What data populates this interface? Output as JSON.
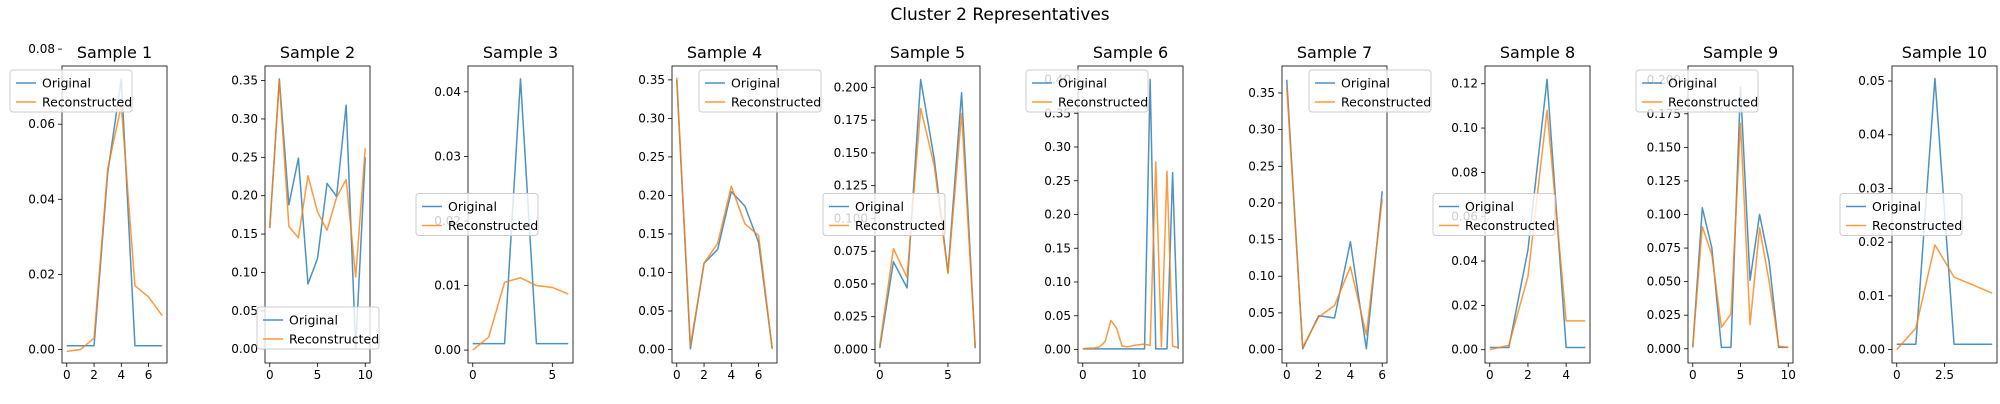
{
  "figure": {
    "suptitle": "Cluster 2 Representatives",
    "legend_labels": [
      "Original",
      "Reconstructed"
    ],
    "colors": {
      "original": "#1f77b4",
      "reconstructed": "#ff7f0e"
    }
  },
  "chart_data": [
    {
      "type": "line",
      "title": "Sample 1",
      "xlim": [
        -0.35,
        7.35
      ],
      "ylim": [
        -0.0036,
        0.0755
      ],
      "xticks": [
        0,
        2,
        4,
        6
      ],
      "yticks": [
        0.0,
        0.02,
        0.04,
        0.06,
        0.08
      ],
      "ytick_decimals": 2,
      "legend_position": "upper left",
      "x": [
        0,
        1,
        2,
        3,
        4,
        5,
        6,
        7
      ],
      "series": [
        {
          "name": "Original",
          "values": [
            0.001,
            0.001,
            0.001,
            0.047,
            0.072,
            0.001,
            0.001,
            0.001
          ]
        },
        {
          "name": "Reconstructed",
          "values": [
            -0.0005,
            0.0,
            0.003,
            0.048,
            0.065,
            0.017,
            0.014,
            0.009
          ]
        }
      ]
    },
    {
      "type": "line",
      "title": "Sample 2",
      "xlim": [
        -0.5,
        10.5
      ],
      "ylim": [
        -0.018,
        0.369
      ],
      "xticks": [
        0,
        5,
        10
      ],
      "yticks": [
        0.0,
        0.05,
        0.1,
        0.15,
        0.2,
        0.25,
        0.3,
        0.35
      ],
      "ytick_decimals": 2,
      "legend_position": "lower center",
      "x": [
        0,
        1,
        2,
        3,
        4,
        5,
        6,
        7,
        8,
        9,
        10
      ],
      "series": [
        {
          "name": "Original",
          "values": [
            0.158,
            0.352,
            0.188,
            0.249,
            0.085,
            0.118,
            0.216,
            0.199,
            0.318,
            0.002,
            0.25
          ]
        },
        {
          "name": "Reconstructed",
          "values": [
            0.158,
            0.35,
            0.16,
            0.145,
            0.226,
            0.179,
            0.155,
            0.198,
            0.221,
            0.094,
            0.262
          ]
        }
      ]
    },
    {
      "type": "line",
      "title": "Sample 3",
      "xlim": [
        -0.3,
        6.3
      ],
      "ylim": [
        -0.002,
        0.044
      ],
      "xticks": [
        0,
        5
      ],
      "yticks": [
        0.0,
        0.01,
        0.02,
        0.03,
        0.04
      ],
      "ytick_decimals": 2,
      "legend_position": "center left",
      "x": [
        0,
        1,
        2,
        3,
        4,
        5,
        6
      ],
      "series": [
        {
          "name": "Original",
          "values": [
            0.001,
            0.001,
            0.001,
            0.042,
            0.001,
            0.001,
            0.001
          ]
        },
        {
          "name": "Reconstructed",
          "values": [
            0.0,
            0.002,
            0.0105,
            0.0112,
            0.01,
            0.0097,
            0.0087
          ]
        }
      ]
    },
    {
      "type": "line",
      "title": "Sample 4",
      "xlim": [
        -0.35,
        7.35
      ],
      "ylim": [
        -0.0175,
        0.368
      ],
      "xticks": [
        0,
        2,
        4,
        6
      ],
      "yticks": [
        0.0,
        0.05,
        0.1,
        0.15,
        0.2,
        0.25,
        0.3,
        0.35
      ],
      "ytick_decimals": 2,
      "legend_position": "upper right",
      "x": [
        0,
        1,
        2,
        3,
        4,
        5,
        6,
        7
      ],
      "series": [
        {
          "name": "Original",
          "values": [
            0.35,
            0.001,
            0.112,
            0.13,
            0.205,
            0.186,
            0.139,
            0.001
          ]
        },
        {
          "name": "Reconstructed",
          "values": [
            0.353,
            0.005,
            0.112,
            0.138,
            0.212,
            0.163,
            0.148,
            0.001
          ]
        }
      ]
    },
    {
      "type": "line",
      "title": "Sample 5",
      "xlim": [
        -0.35,
        7.35
      ],
      "ylim": [
        -0.0103,
        0.2163
      ],
      "xticks": [
        0,
        5
      ],
      "yticks": [
        0.0,
        0.025,
        0.05,
        0.075,
        0.1,
        0.125,
        0.15,
        0.175,
        0.2
      ],
      "ytick_decimals": 3,
      "legend_position": "center left",
      "x": [
        0,
        1,
        2,
        3,
        4,
        5,
        6,
        7
      ],
      "series": [
        {
          "name": "Original",
          "values": [
            0.001,
            0.067,
            0.047,
            0.206,
            0.145,
            0.059,
            0.196,
            0.001
          ]
        },
        {
          "name": "Reconstructed",
          "values": [
            0.003,
            0.077,
            0.055,
            0.184,
            0.14,
            0.058,
            0.18,
            0.002
          ]
        }
      ]
    },
    {
      "type": "line",
      "title": "Sample 6",
      "xlim": [
        -0.85,
        17.85
      ],
      "ylim": [
        -0.02,
        0.42
      ],
      "xticks": [
        0,
        10
      ],
      "yticks": [
        0.0,
        0.05,
        0.1,
        0.15,
        0.2,
        0.25,
        0.3,
        0.35,
        0.4
      ],
      "ytick_decimals": 2,
      "legend_position": "upper left",
      "x": [
        0,
        1,
        2,
        3,
        4,
        5,
        6,
        7,
        8,
        9,
        10,
        11,
        12,
        13,
        14,
        15,
        16,
        17
      ],
      "series": [
        {
          "name": "Original",
          "values": [
            0.001,
            0.001,
            0.001,
            0.001,
            0.001,
            0.001,
            0.001,
            0.001,
            0.001,
            0.001,
            0.001,
            0.001,
            0.4,
            0.001,
            0.001,
            0.001,
            0.262,
            0.001
          ]
        },
        {
          "name": "Reconstructed",
          "values": [
            0.001,
            0.002,
            0.002,
            0.004,
            0.012,
            0.043,
            0.032,
            0.005,
            0.004,
            0.006,
            0.007,
            0.008,
            0.006,
            0.278,
            0.004,
            0.264,
            0.005,
            0.003
          ]
        }
      ]
    },
    {
      "type": "line",
      "title": "Sample 7",
      "xlim": [
        -0.3,
        6.3
      ],
      "ylim": [
        -0.0184,
        0.3868
      ],
      "xticks": [
        0,
        2,
        4,
        6
      ],
      "yticks": [
        0.0,
        0.05,
        0.1,
        0.15,
        0.2,
        0.25,
        0.3,
        0.35
      ],
      "ytick_decimals": 2,
      "legend_position": "upper right",
      "x": [
        0,
        1,
        2,
        3,
        4,
        5,
        6
      ],
      "series": [
        {
          "name": "Original",
          "values": [
            0.368,
            0.001,
            0.046,
            0.043,
            0.147,
            0.001,
            0.216
          ]
        },
        {
          "name": "Reconstructed",
          "values": [
            0.358,
            0.003,
            0.044,
            0.06,
            0.113,
            0.02,
            0.205
          ]
        }
      ]
    },
    {
      "type": "line",
      "title": "Sample 8",
      "xlim": [
        -0.25,
        5.25
      ],
      "ylim": [
        -0.006,
        0.128
      ],
      "xticks": [
        0,
        2,
        4
      ],
      "yticks": [
        0.0,
        0.02,
        0.04,
        0.06,
        0.08,
        0.1,
        0.12
      ],
      "ytick_decimals": 2,
      "legend_position": "center left",
      "x": [
        0,
        1,
        2,
        3,
        4,
        5
      ],
      "series": [
        {
          "name": "Original",
          "values": [
            0.001,
            0.001,
            0.045,
            0.122,
            0.001,
            0.001
          ]
        },
        {
          "name": "Reconstructed",
          "values": [
            0.0,
            0.002,
            0.033,
            0.108,
            0.013,
            0.013
          ]
        }
      ]
    },
    {
      "type": "line",
      "title": "Sample 9",
      "xlim": [
        -0.5,
        10.5
      ],
      "ylim": [
        -0.0106,
        0.2106
      ],
      "xticks": [
        0,
        5,
        10
      ],
      "yticks": [
        0.0,
        0.025,
        0.05,
        0.075,
        0.1,
        0.125,
        0.15,
        0.175,
        0.2
      ],
      "ytick_decimals": 3,
      "legend_position": "upper left",
      "x": [
        0,
        1,
        2,
        3,
        4,
        5,
        6,
        7,
        8,
        9,
        10
      ],
      "series": [
        {
          "name": "Original",
          "values": [
            0.001,
            0.105,
            0.075,
            0.001,
            0.001,
            0.195,
            0.051,
            0.1,
            0.065,
            0.001,
            0.001
          ]
        },
        {
          "name": "Reconstructed",
          "values": [
            0.002,
            0.091,
            0.07,
            0.016,
            0.026,
            0.168,
            0.018,
            0.09,
            0.05,
            0.002,
            0.001
          ]
        }
      ]
    },
    {
      "type": "line",
      "title": "Sample 10",
      "xlim": [
        -0.25,
        5.25
      ],
      "ylim": [
        -0.0025,
        0.0528
      ],
      "xticks": [
        0,
        2.5
      ],
      "yticks": [
        0.0,
        0.01,
        0.02,
        0.03,
        0.04,
        0.05
      ],
      "ytick_decimals": 2,
      "legend_position": "center left",
      "x": [
        0,
        1,
        2,
        3,
        4,
        5
      ],
      "series": [
        {
          "name": "Original",
          "values": [
            0.001,
            0.001,
            0.0505,
            0.001,
            0.001,
            0.001
          ]
        },
        {
          "name": "Reconstructed",
          "values": [
            0.0,
            0.004,
            0.0195,
            0.0135,
            0.012,
            0.0105
          ]
        }
      ]
    }
  ]
}
